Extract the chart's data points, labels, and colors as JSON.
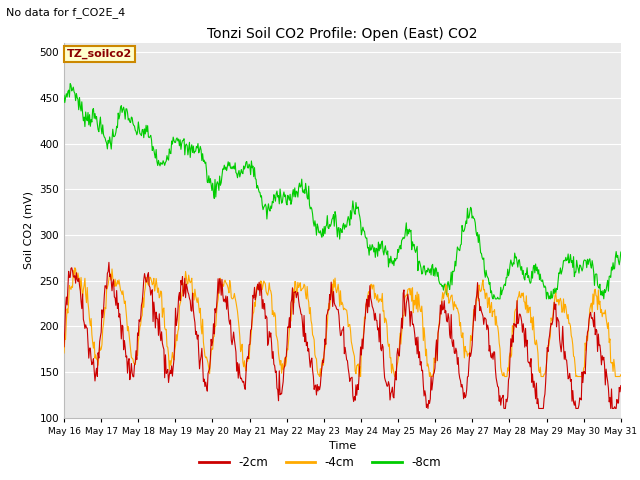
{
  "title": "Tonzi Soil CO2 Profile: Open (East) CO2",
  "subtitle": "No data for f_CO2E_4",
  "ylabel": "Soil CO2 (mV)",
  "xlabel": "Time",
  "ylim": [
    100,
    510
  ],
  "yticks": [
    100,
    150,
    200,
    250,
    300,
    350,
    400,
    450,
    500
  ],
  "bg_color": "#e8e8e8",
  "fig_color": "#ffffff",
  "legend_label_2cm": "-2cm",
  "legend_label_4cm": "-4cm",
  "legend_label_8cm": "-8cm",
  "color_2cm": "#cc0000",
  "color_4cm": "#ffaa00",
  "color_8cm": "#00cc00",
  "box_label": "TZ_soilco2",
  "box_facecolor": "#ffffcc",
  "box_edgecolor": "#cc8800",
  "x_tick_labels": [
    "May 16",
    "May 17",
    "May 18",
    "May 19",
    "May 20",
    "May 21",
    "May 22",
    "May 23",
    "May 24",
    "May 25",
    "May 26",
    "May 27",
    "May 28",
    "May 29",
    "May 30",
    "May 31"
  ],
  "n_days": 15,
  "pts_per_day": 48
}
